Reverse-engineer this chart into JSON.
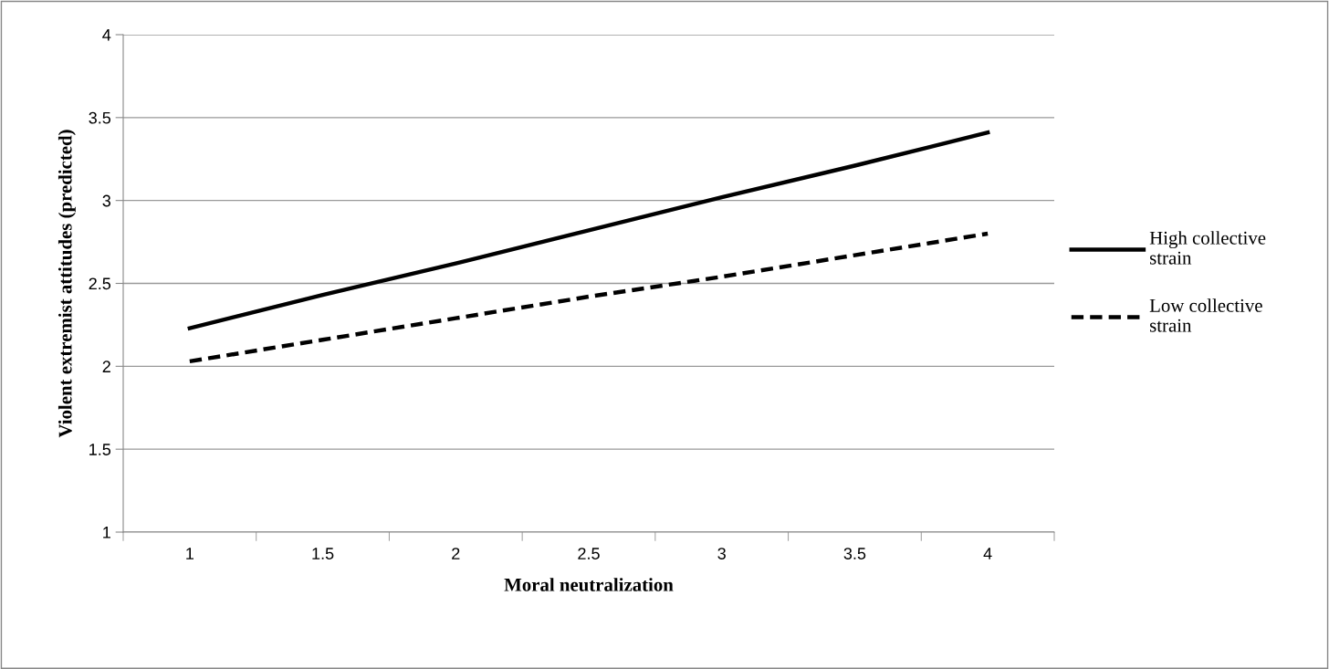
{
  "chart_data": {
    "type": "line",
    "xlabel": "Moral neutralization",
    "ylabel": "Violent extremist attitudes (predicted)",
    "categories": [
      "1",
      "1.5",
      "2",
      "2.5",
      "3",
      "3.5",
      "4"
    ],
    "series": [
      {
        "name": "High collective strain",
        "color": "#000000",
        "line_style": "solid",
        "values": [
          2.23,
          2.43,
          2.62,
          2.82,
          3.02,
          3.21,
          3.41
        ]
      },
      {
        "name": "Low collective strain",
        "color": "#000000",
        "line_style": "dashed",
        "values": [
          2.03,
          2.16,
          2.29,
          2.42,
          2.54,
          2.67,
          2.8
        ]
      }
    ],
    "ylim": [
      1,
      4
    ],
    "yticks": [
      1,
      1.5,
      2,
      2.5,
      3,
      3.5,
      4
    ],
    "grid": "y",
    "legend": "right",
    "marker": "none"
  }
}
